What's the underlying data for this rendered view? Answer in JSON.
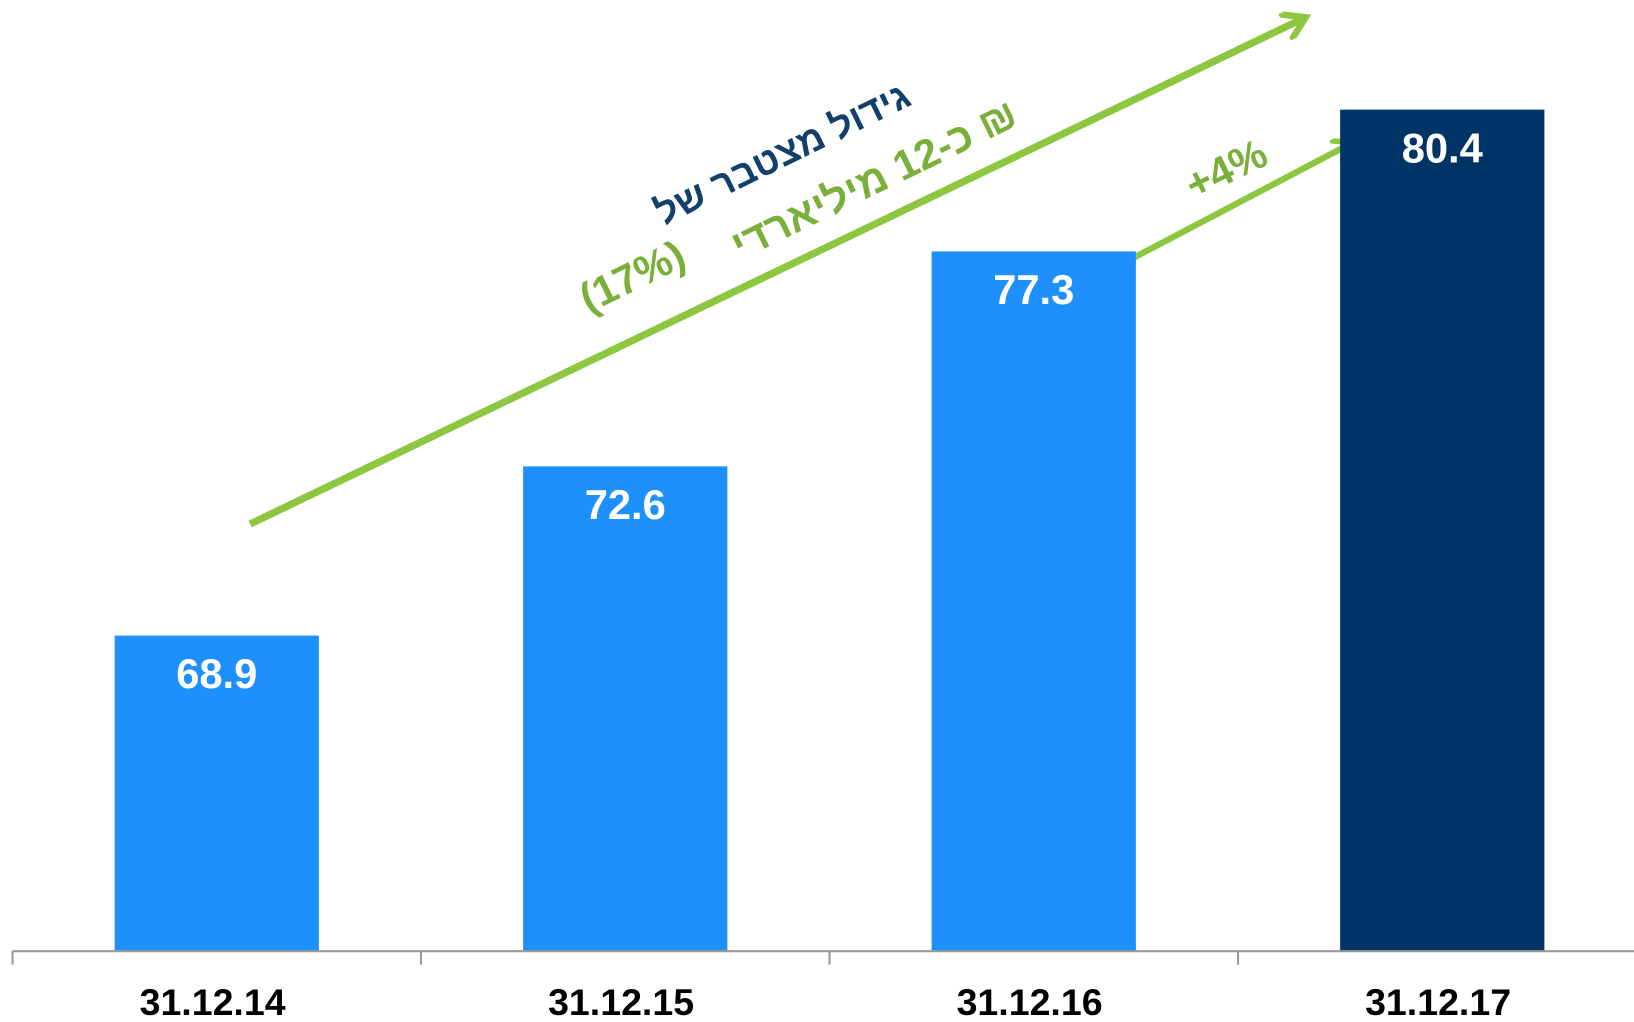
{
  "chart_data": {
    "type": "bar",
    "categories": [
      "31.12.14",
      "31.12.15",
      "31.12.16",
      "31.12.17"
    ],
    "values": [
      68.9,
      72.6,
      77.3,
      80.4
    ],
    "colors": [
      "#1e90fc",
      "#1e90fc",
      "#1e90fc",
      "#003466"
    ],
    "ylim": [
      62,
      82
    ],
    "annotations": [
      "גידול מצטבר של",
      "כ-12 מיליארדי ₪",
      "(17%)",
      "+4%"
    ]
  }
}
